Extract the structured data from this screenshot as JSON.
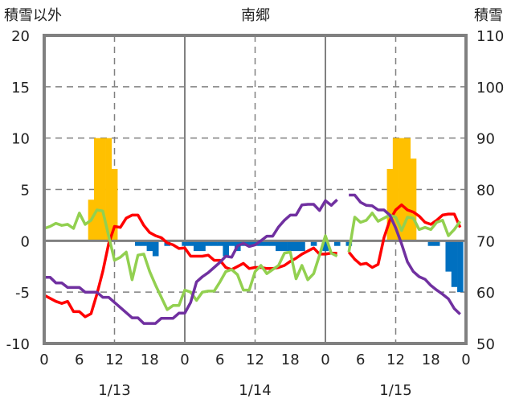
{
  "chart_data": {
    "type": "line+bar",
    "title": "南郷",
    "ylabel_left": "積雪以外",
    "ylabel_right": "積雪",
    "ylim_left": [
      -10,
      20
    ],
    "ylim_right": [
      50,
      110
    ],
    "yticks_left": [
      "20",
      "15",
      "10",
      "5",
      "0",
      "-5",
      "-10"
    ],
    "yticks_right": [
      "110",
      "100",
      "90",
      "80",
      "70",
      "60",
      "50"
    ],
    "xticks": [
      "0",
      "6",
      "12",
      "18",
      "0",
      "6",
      "12",
      "18",
      "0",
      "6",
      "12",
      "18",
      "0"
    ],
    "date_labels": [
      {
        "text": "1/13",
        "hour": 12
      },
      {
        "text": "1/14",
        "hour": 36
      },
      {
        "text": "1/15",
        "hour": 60
      }
    ],
    "x_hours": 72,
    "grid": true,
    "colors": {
      "red": "#FF0000",
      "green": "#92D050",
      "purple": "#7030A0",
      "bar_pos": "#FFC000",
      "bar_neg": "#0070C0",
      "frame": "#808080"
    },
    "bars": {
      "name": "snow depth change",
      "axis": "left",
      "values": [
        0,
        0,
        0,
        0,
        0,
        0,
        0,
        0,
        4,
        10,
        10,
        10,
        7,
        0,
        0,
        0,
        -0.5,
        -0.5,
        -1,
        -1.5,
        0,
        -0.5,
        0,
        0,
        -0.5,
        -0.5,
        -1,
        -1,
        -0.5,
        -0.5,
        -0.5,
        -1.5,
        -0.5,
        -1,
        -0.5,
        -0.5,
        -0.5,
        -0.5,
        -0.5,
        -0.5,
        -1,
        -1,
        -1,
        -1,
        -1,
        0,
        -0.5,
        0,
        -1,
        0,
        -0.5,
        0,
        -0.5,
        0,
        0,
        0,
        0,
        0,
        0,
        7,
        10,
        10,
        10,
        8,
        0,
        0,
        -0.5,
        -0.5,
        0,
        -3,
        -4.5,
        -5
      ]
    },
    "series": [
      {
        "name": "red",
        "axis": "left",
        "values": [
          -5.3,
          -5.6,
          -5.9,
          -6.1,
          -5.9,
          -6.9,
          -6.9,
          -7.4,
          -7.1,
          -5.2,
          -3.0,
          -0.3,
          1.4,
          1.3,
          2.2,
          2.5,
          2.5,
          1.5,
          0.8,
          0.5,
          0.3,
          -0.2,
          -0.4,
          -0.75,
          -0.7,
          -1.5,
          -1.5,
          -1.5,
          -1.4,
          -1.9,
          -1.9,
          -2.6,
          -2.8,
          -2.5,
          -2.2,
          -2.7,
          -2.6,
          -2.6,
          -2.7,
          -2.7,
          -2.6,
          -2.4,
          -2.0,
          -1.7,
          -1.3,
          -1.0,
          -0.7,
          -1.3,
          -1.3,
          -1.2,
          -1.2,
          null,
          -1.1,
          -1.8,
          -2.3,
          -2.2,
          -2.6,
          -2.3,
          0.3,
          2.0,
          3.0,
          3.5,
          3.0,
          2.8,
          2.4,
          1.8,
          1.6,
          2.0,
          2.5,
          2.6,
          2.6,
          1.3
        ]
      },
      {
        "name": "green",
        "axis": "left",
        "values": [
          1.2,
          1.4,
          1.7,
          1.5,
          1.6,
          1.2,
          2.7,
          1.6,
          2.0,
          3.0,
          2.9,
          0.5,
          -1.9,
          -1.6,
          -1.1,
          -3.8,
          -1.4,
          -1.3,
          -3.0,
          -4.3,
          -5.5,
          -6.7,
          -6.3,
          -6.3,
          -4.8,
          -5.0,
          -5.8,
          -5.0,
          -4.9,
          -4.9,
          -4.0,
          -3.0,
          -2.8,
          -3.3,
          -4.8,
          -4.8,
          -3.0,
          -2.4,
          -3.2,
          -2.8,
          -2.4,
          -1.2,
          -1.1,
          -3.7,
          -2.4,
          -3.8,
          -3.2,
          -1.4,
          0.5,
          -1.2,
          -1.5,
          null,
          -1.1,
          2.3,
          1.8,
          2.0,
          2.7,
          1.9,
          2.2,
          2.5,
          2.3,
          1.0,
          2.3,
          2.2,
          1.1,
          1.3,
          1.1,
          1.8,
          2.0,
          0.5,
          1.1,
          1.9
        ]
      },
      {
        "name": "purple",
        "axis": "right",
        "values": [
          62.9,
          62.9,
          61.8,
          61.8,
          60.9,
          60.9,
          60.9,
          60.0,
          60.0,
          60.0,
          59.0,
          59.0,
          58.0,
          57.0,
          56.0,
          55.0,
          55.0,
          53.9,
          53.9,
          53.9,
          54.9,
          54.9,
          54.9,
          55.9,
          55.9,
          58.0,
          62.0,
          63.0,
          63.8,
          64.8,
          65.8,
          67.0,
          66.8,
          69.0,
          69.5,
          68.9,
          69.2,
          70.0,
          70.9,
          70.9,
          72.7,
          74.0,
          75.0,
          75.0,
          77.0,
          77.1,
          77.1,
          75.9,
          77.8,
          76.9,
          78.0,
          null,
          78.9,
          78.9,
          77.5,
          76.9,
          76.8,
          76.0,
          76.0,
          75.0,
          72.5,
          69.4,
          65.9,
          64.0,
          63.0,
          62.5,
          61.3,
          60.4,
          59.6,
          58.7,
          56.8,
          55.7
        ]
      }
    ]
  }
}
